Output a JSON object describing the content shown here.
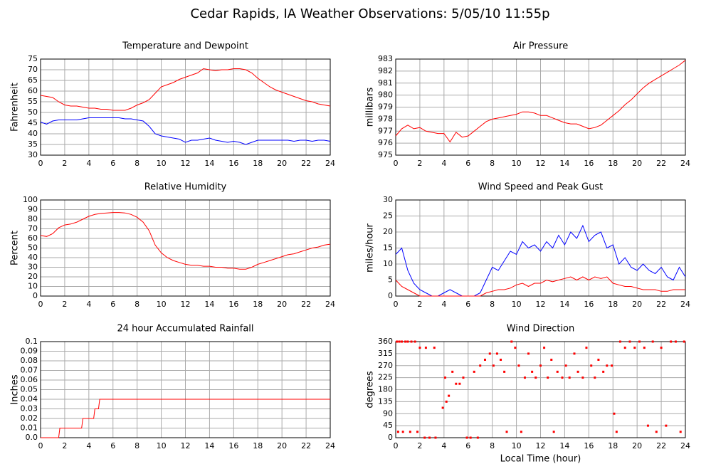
{
  "title": "Cedar Rapids, IA Weather Observations: 5/05/10 11:55p",
  "chart_data": [
    {
      "type": "line",
      "title": "Temperature and Dewpoint",
      "ylabel": "Fahrenheit",
      "x": [
        0,
        0.5,
        1,
        1.5,
        2,
        2.5,
        3,
        3.5,
        4,
        4.5,
        5,
        5.5,
        6,
        6.5,
        7,
        7.5,
        8,
        8.5,
        9,
        9.5,
        10,
        10.5,
        11,
        11.5,
        12,
        12.5,
        13,
        13.5,
        14,
        14.5,
        15,
        15.5,
        16,
        16.5,
        17,
        17.5,
        18,
        18.5,
        19,
        19.5,
        20,
        20.5,
        21,
        21.5,
        22,
        22.5,
        23,
        23.5,
        24
      ],
      "series": [
        {
          "color": "#ff0000",
          "values": [
            58,
            57.5,
            57,
            55,
            53.5,
            53,
            53,
            52.5,
            52,
            52,
            51.5,
            51.5,
            51,
            51,
            51,
            52,
            53.5,
            54.5,
            56,
            59,
            62,
            63,
            64,
            65.5,
            66.5,
            67.5,
            68.5,
            70.5,
            70,
            69.5,
            70,
            70,
            70.5,
            70.5,
            70,
            68.5,
            66,
            64,
            62,
            60.5,
            59.5,
            58.5,
            57.5,
            56.5,
            55.5,
            55,
            54,
            53.5,
            53
          ]
        },
        {
          "color": "#0000ff",
          "values": [
            45.5,
            44.5,
            46,
            46.5,
            46.5,
            46.5,
            46.5,
            47,
            47.5,
            47.5,
            47.5,
            47.5,
            47.5,
            47.5,
            47,
            47,
            46.5,
            46,
            43.5,
            40,
            39,
            38.5,
            38,
            37.5,
            36,
            37,
            37,
            37.5,
            38,
            37,
            36.5,
            36,
            36.5,
            36,
            35,
            36,
            37,
            37,
            37,
            37,
            37,
            37,
            36.5,
            37,
            37,
            36.5,
            37,
            37,
            36.5
          ]
        }
      ],
      "xlim": [
        0,
        24
      ],
      "xticks": [
        0,
        2,
        4,
        6,
        8,
        10,
        12,
        14,
        16,
        18,
        20,
        22,
        24
      ],
      "ylim": [
        30,
        75
      ],
      "yticks": [
        30,
        35,
        40,
        45,
        50,
        55,
        60,
        65,
        70,
        75
      ],
      "grid": true
    },
    {
      "type": "line",
      "title": "Air Pressure",
      "ylabel": "millibars",
      "x": [
        0,
        0.5,
        1,
        1.5,
        2,
        2.5,
        3,
        3.5,
        4,
        4.5,
        5,
        5.5,
        6,
        6.5,
        7,
        7.5,
        8,
        8.5,
        9,
        9.5,
        10,
        10.5,
        11,
        11.5,
        12,
        12.5,
        13,
        13.5,
        14,
        14.5,
        15,
        15.5,
        16,
        16.5,
        17,
        17.5,
        18,
        18.5,
        19,
        19.5,
        20,
        20.5,
        21,
        21.5,
        22,
        22.5,
        23,
        23.5,
        24
      ],
      "series": [
        {
          "color": "#ff0000",
          "values": [
            976.6,
            977.2,
            977.5,
            977.2,
            977.3,
            977,
            976.9,
            976.8,
            976.8,
            976.1,
            976.9,
            976.5,
            976.6,
            977,
            977.4,
            977.8,
            978,
            978.1,
            978.2,
            978.3,
            978.4,
            978.6,
            978.6,
            978.5,
            978.3,
            978.3,
            978.1,
            977.9,
            977.7,
            977.6,
            977.6,
            977.4,
            977.2,
            977.3,
            977.5,
            977.9,
            978.3,
            978.7,
            979.2,
            979.6,
            980.1,
            980.6,
            981,
            981.3,
            981.6,
            981.9,
            982.2,
            982.5,
            982.9
          ]
        }
      ],
      "xlim": [
        0,
        24
      ],
      "xticks": [
        0,
        2,
        4,
        6,
        8,
        10,
        12,
        14,
        16,
        18,
        20,
        22,
        24
      ],
      "ylim": [
        975,
        983
      ],
      "yticks": [
        975,
        976,
        977,
        978,
        979,
        980,
        981,
        982,
        983
      ],
      "grid": true
    },
    {
      "type": "line",
      "title": "Relative Humidity",
      "ylabel": "Percent",
      "x": [
        0,
        0.5,
        1,
        1.5,
        2,
        2.5,
        3,
        3.5,
        4,
        4.5,
        5,
        5.5,
        6,
        6.5,
        7,
        7.5,
        8,
        8.5,
        9,
        9.5,
        10,
        10.5,
        11,
        11.5,
        12,
        12.5,
        13,
        13.5,
        14,
        14.5,
        15,
        15.5,
        16,
        16.5,
        17,
        17.5,
        18,
        18.5,
        19,
        19.5,
        20,
        20.5,
        21,
        21.5,
        22,
        22.5,
        23,
        23.5,
        24
      ],
      "series": [
        {
          "color": "#ff0000",
          "values": [
            63,
            62,
            65,
            71,
            74,
            75,
            77,
            80,
            83,
            85,
            86,
            86.5,
            87,
            87,
            86.5,
            85,
            82,
            77,
            68,
            53,
            45,
            40,
            37,
            35,
            33,
            32,
            32,
            31,
            31,
            30,
            30,
            29,
            29,
            28,
            28,
            30,
            33,
            35,
            37,
            39,
            41,
            43,
            44,
            46,
            48,
            50,
            51,
            53,
            54
          ]
        }
      ],
      "xlim": [
        0,
        24
      ],
      "xticks": [
        0,
        2,
        4,
        6,
        8,
        10,
        12,
        14,
        16,
        18,
        20,
        22,
        24
      ],
      "ylim": [
        0,
        100
      ],
      "yticks": [
        0,
        10,
        20,
        30,
        40,
        50,
        60,
        70,
        80,
        90,
        100
      ],
      "grid": true
    },
    {
      "type": "line",
      "title": "Wind Speed and Peak Gust",
      "ylabel": "miles/hour",
      "x": [
        0,
        0.5,
        1,
        1.5,
        2,
        2.5,
        3,
        3.5,
        4,
        4.5,
        5,
        5.5,
        6,
        6.5,
        7,
        7.5,
        8,
        8.5,
        9,
        9.5,
        10,
        10.5,
        11,
        11.5,
        12,
        12.5,
        13,
        13.5,
        14,
        14.5,
        15,
        15.5,
        16,
        16.5,
        17,
        17.5,
        18,
        18.5,
        19,
        19.5,
        20,
        20.5,
        21,
        21.5,
        22,
        22.5,
        23,
        23.5,
        24
      ],
      "series": [
        {
          "color": "#0000ff",
          "values": [
            13,
            15,
            8,
            4,
            2,
            1,
            0,
            0,
            1,
            2,
            1,
            0,
            0,
            0,
            1,
            5,
            9,
            8,
            11,
            14,
            13,
            17,
            15,
            16,
            14,
            17,
            15,
            19,
            16,
            20,
            18,
            22,
            17,
            19,
            20,
            15,
            16,
            10,
            12,
            9,
            8,
            10,
            8,
            7,
            9,
            6,
            5,
            9,
            6
          ]
        },
        {
          "color": "#ff0000",
          "values": [
            5,
            3,
            2,
            1,
            0,
            0,
            0,
            0,
            0,
            0,
            0,
            0,
            0,
            0,
            0,
            1,
            1.5,
            2,
            2,
            2.5,
            3.5,
            4,
            3,
            4,
            4,
            5,
            4.5,
            5,
            5.5,
            6,
            5,
            6,
            5,
            6,
            5.5,
            6,
            4,
            3.5,
            3,
            3,
            2.5,
            2,
            2,
            2,
            1.5,
            1.5,
            2,
            2,
            2
          ]
        }
      ],
      "xlim": [
        0,
        24
      ],
      "xticks": [
        0,
        2,
        4,
        6,
        8,
        10,
        12,
        14,
        16,
        18,
        20,
        22,
        24
      ],
      "ylim": [
        0,
        30
      ],
      "yticks": [
        0,
        5,
        10,
        15,
        20,
        25,
        30
      ],
      "grid": true
    },
    {
      "type": "line",
      "title": "24 hour Accumulated Rainfall",
      "ylabel": "Inches",
      "x": [
        0,
        1.5,
        1.6,
        3.4,
        3.5,
        4.4,
        4.5,
        4.8,
        4.9,
        24
      ],
      "series": [
        {
          "color": "#ff0000",
          "values": [
            0,
            0,
            0.01,
            0.01,
            0.02,
            0.02,
            0.03,
            0.03,
            0.04,
            0.04
          ]
        }
      ],
      "xlim": [
        0,
        24
      ],
      "xticks": [
        0,
        2,
        4,
        6,
        8,
        10,
        12,
        14,
        16,
        18,
        20,
        22,
        24
      ],
      "ylim": [
        0,
        0.1
      ],
      "yticks": [
        {
          "value": 0,
          "label": "0.0"
        },
        0.01,
        0.02,
        0.03,
        0.04,
        0.05,
        0.06,
        0.07,
        0.08,
        0.09,
        0.1
      ],
      "grid": true
    },
    {
      "type": "scatter",
      "title": "Wind Direction",
      "ylabel": "degrees",
      "xlabel": "Local Time (hour)",
      "x": [
        0.1,
        0.3,
        0.5,
        0.8,
        1.0,
        1.3,
        1.6,
        0.2,
        0.6,
        1.2,
        1.8,
        2.0,
        2.5,
        3.2,
        2.4,
        2.8,
        3.3,
        3.9,
        4.1,
        4.2,
        4.4,
        4.7,
        5.0,
        5.3,
        5.6,
        5.9,
        6.2,
        6.5,
        6.8,
        7.0,
        7.4,
        7.8,
        8.1,
        8.4,
        8.7,
        9.0,
        9.2,
        9.6,
        9.9,
        10.2,
        10.4,
        10.7,
        11.0,
        11.3,
        11.6,
        12.0,
        12.3,
        12.6,
        12.9,
        13.1,
        13.4,
        13.8,
        14.1,
        14.4,
        14.8,
        15.1,
        15.5,
        15.8,
        16.2,
        16.5,
        16.8,
        17.2,
        17.5,
        17.9,
        18.1,
        18.3,
        18.6,
        19.0,
        19.4,
        19.8,
        20.2,
        20.6,
        20.9,
        21.3,
        21.6,
        22.0,
        22.4,
        22.8,
        23.2,
        23.6,
        23.9
      ],
      "series": [
        {
          "color": "#ff0000",
          "values": [
            360,
            360,
            360,
            360,
            360,
            360,
            360,
            22,
            22,
            22,
            22,
            337,
            337,
            337,
            0,
            0,
            0,
            112,
            225,
            135,
            157,
            247,
            202,
            202,
            225,
            0,
            0,
            247,
            0,
            270,
            292,
            315,
            270,
            315,
            292,
            247,
            22,
            360,
            337,
            270,
            22,
            225,
            315,
            247,
            225,
            270,
            337,
            225,
            292,
            22,
            247,
            225,
            270,
            225,
            315,
            247,
            225,
            337,
            270,
            225,
            292,
            247,
            270,
            270,
            90,
            22,
            360,
            337,
            360,
            337,
            360,
            337,
            45,
            360,
            22,
            337,
            45,
            360,
            360,
            22,
            360
          ]
        }
      ],
      "xlim": [
        0,
        24
      ],
      "xticks": [
        0,
        2,
        4,
        6,
        8,
        10,
        12,
        14,
        16,
        18,
        20,
        22,
        24
      ],
      "ylim": [
        0,
        360
      ],
      "yticks": [
        0,
        45,
        90,
        135,
        180,
        225,
        270,
        315,
        360
      ],
      "grid": true
    }
  ]
}
